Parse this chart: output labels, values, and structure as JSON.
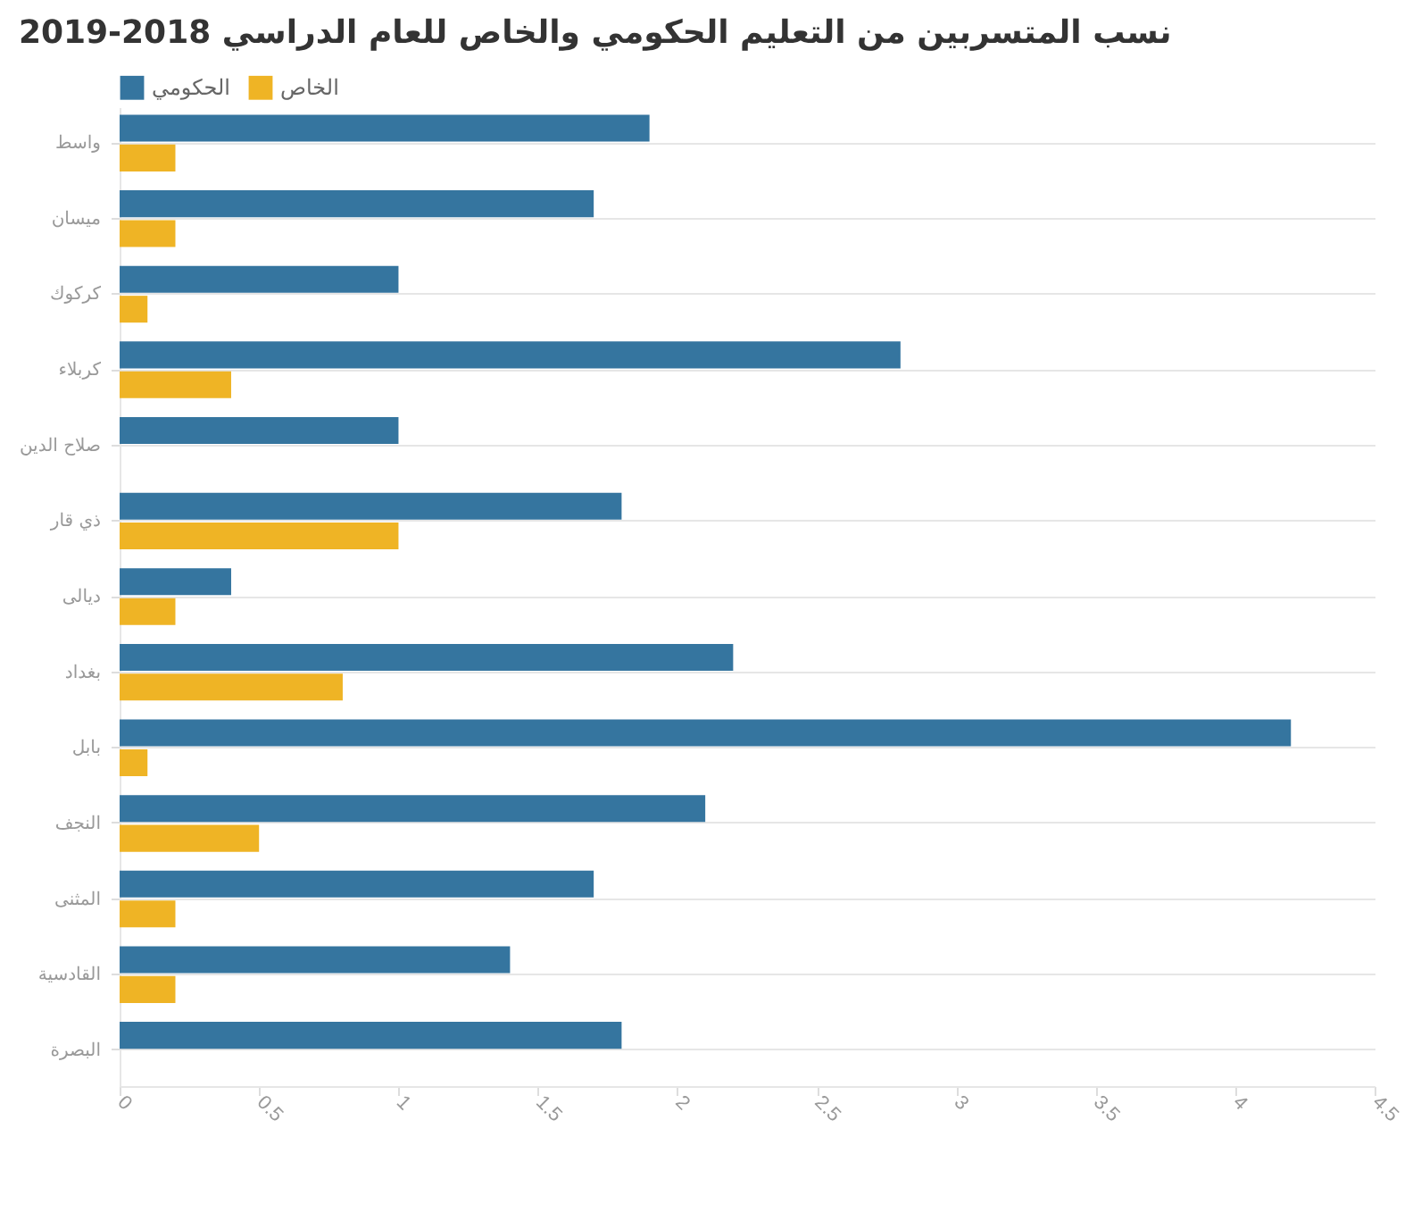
{
  "chart_data": {
    "type": "bar",
    "orientation": "horizontal",
    "title": "نسب المتسربين من التعليم الحكومي والخاص للعام الدراسي 2018-2019",
    "categories": [
      "واسط",
      "ميسان",
      "كركوك",
      "كربلاء",
      "صلاح الدين",
      "ذي قار",
      "ديالى",
      "بغداد",
      "بابل",
      "النجف",
      "المثنى",
      "القادسية",
      "البصرة"
    ],
    "series": [
      {
        "name": "الحكومي",
        "color": "#35759f",
        "values": [
          1.9,
          1.7,
          1.0,
          2.8,
          1.0,
          1.8,
          0.4,
          2.2,
          4.2,
          2.1,
          1.7,
          1.4,
          1.8
        ]
      },
      {
        "name": "الخاص",
        "color": "#efb425",
        "values": [
          0.2,
          0.2,
          0.1,
          0.4,
          null,
          1.0,
          0.2,
          0.8,
          0.1,
          0.5,
          0.2,
          0.2,
          null
        ]
      }
    ],
    "xlim": [
      0,
      4.5
    ],
    "xticks": [
      0,
      0.5,
      1,
      1.5,
      2,
      2.5,
      3,
      3.5,
      4,
      4.5
    ],
    "grid": "y",
    "legend": "top left"
  }
}
